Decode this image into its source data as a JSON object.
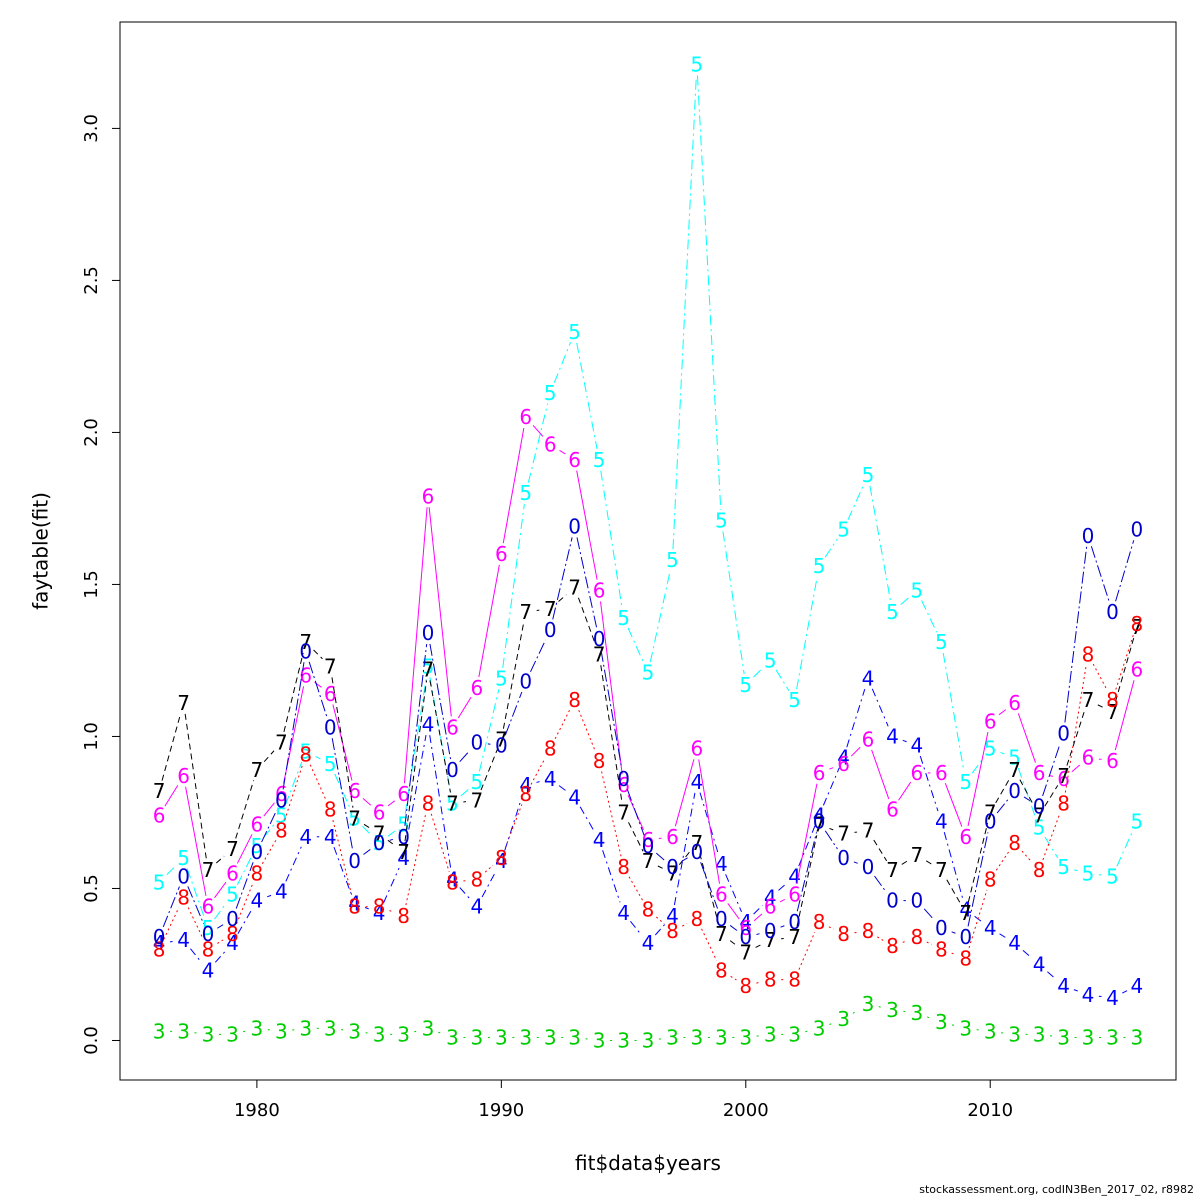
{
  "footer": "stockassessment.org, codIN3Ben_2017_02, r8982",
  "chart_data": {
    "type": "line",
    "title": "",
    "xlabel": "fit$data$years",
    "ylabel": "faytable(fit)",
    "xlim": [
      1975.4,
      1972.4
    ],
    "ylim": [
      -0.13,
      3.35
    ],
    "x_ticks": [
      1980,
      1990,
      2000,
      2010
    ],
    "x_tick_labels": [
      "1980",
      "1990",
      "2000",
      "2010"
    ],
    "y_ticks": [
      0.0,
      0.5,
      1.0,
      1.5,
      2.0,
      2.5,
      3.0
    ],
    "y_tick_labels": [
      "0.0",
      "0.5",
      "1.0",
      "1.5",
      "2.0",
      "2.5",
      "3.0"
    ],
    "grid": false,
    "x": [
      1976,
      1977,
      1978,
      1979,
      1980,
      1981,
      1982,
      1983,
      1984,
      1985,
      1986,
      1987,
      1988,
      1989,
      1990,
      1991,
      1992,
      1993,
      1994,
      1995,
      1996,
      1997,
      1998,
      1999,
      2000,
      2001,
      2002,
      2003,
      2004,
      2005,
      2006,
      2007,
      2008,
      2009,
      2010,
      2011,
      2012,
      2013,
      2014,
      2015,
      2016
    ],
    "series": [
      {
        "label": "3",
        "color": "#00cd00",
        "dash": "2,6",
        "values": [
          0.03,
          0.03,
          0.02,
          0.02,
          0.04,
          0.03,
          0.04,
          0.04,
          0.03,
          0.02,
          0.02,
          0.04,
          0.01,
          0.01,
          0.01,
          0.01,
          0.01,
          0.01,
          0.0,
          0.0,
          0.0,
          0.01,
          0.01,
          0.01,
          0.01,
          0.02,
          0.02,
          0.04,
          0.07,
          0.12,
          0.1,
          0.09,
          0.06,
          0.04,
          0.03,
          0.02,
          0.02,
          0.01,
          0.01,
          0.01,
          0.01
        ]
      },
      {
        "label": "4",
        "color": "#0000ff",
        "dash": "8,4,2,4",
        "values": [
          0.32,
          0.33,
          0.23,
          0.32,
          0.46,
          0.49,
          0.67,
          0.67,
          0.45,
          0.42,
          0.6,
          1.04,
          0.53,
          0.44,
          0.59,
          0.84,
          0.86,
          0.8,
          0.66,
          0.42,
          0.32,
          0.41,
          0.85,
          0.58,
          0.39,
          0.47,
          0.54,
          0.74,
          0.93,
          1.19,
          1.0,
          0.97,
          0.72,
          0.43,
          0.37,
          0.32,
          0.25,
          0.18,
          0.15,
          0.14,
          0.18
        ]
      },
      {
        "label": "5",
        "color": "#00ffff",
        "dash": "10,4,2,4",
        "values": [
          0.52,
          0.6,
          0.37,
          0.48,
          0.64,
          0.74,
          0.95,
          0.91,
          0.73,
          0.65,
          0.71,
          1.23,
          0.78,
          0.85,
          1.19,
          1.8,
          2.13,
          2.33,
          1.91,
          1.39,
          1.21,
          1.58,
          3.21,
          1.71,
          1.17,
          1.25,
          1.12,
          1.56,
          1.68,
          1.86,
          1.41,
          1.48,
          1.31,
          0.85,
          0.96,
          0.93,
          0.7,
          0.57,
          0.55,
          0.54,
          0.72
        ]
      },
      {
        "label": "6",
        "color": "#ff00ff",
        "dash": "",
        "values": [
          0.74,
          0.87,
          0.44,
          0.55,
          0.71,
          0.81,
          1.2,
          1.14,
          0.82,
          0.75,
          0.81,
          1.79,
          1.03,
          1.16,
          1.6,
          2.05,
          1.96,
          1.91,
          1.48,
          0.84,
          0.66,
          0.67,
          0.96,
          0.48,
          0.37,
          0.44,
          0.48,
          0.88,
          0.91,
          0.99,
          0.76,
          0.88,
          0.88,
          0.67,
          1.05,
          1.11,
          0.88,
          0.86,
          0.93,
          0.92,
          1.22
        ]
      },
      {
        "label": "7",
        "color": "#000000",
        "dash": "6,4",
        "values": [
          0.82,
          1.11,
          0.56,
          0.63,
          0.89,
          0.98,
          1.31,
          1.23,
          0.73,
          0.68,
          0.62,
          1.22,
          0.78,
          0.79,
          0.99,
          1.41,
          1.42,
          1.49,
          1.27,
          0.75,
          0.59,
          0.55,
          0.65,
          0.35,
          0.29,
          0.33,
          0.34,
          0.71,
          0.68,
          0.69,
          0.56,
          0.61,
          0.56,
          0.42,
          0.75,
          0.89,
          0.74,
          0.87,
          1.12,
          1.08,
          1.36
        ]
      },
      {
        "label": "8",
        "color": "#ff0000",
        "dash": "2,3",
        "values": [
          0.3,
          0.47,
          0.3,
          0.35,
          0.55,
          0.69,
          0.94,
          0.76,
          0.44,
          0.44,
          0.41,
          0.78,
          0.52,
          0.53,
          0.6,
          0.81,
          0.96,
          1.12,
          0.92,
          0.57,
          0.43,
          0.36,
          0.4,
          0.23,
          0.18,
          0.2,
          0.2,
          0.39,
          0.35,
          0.36,
          0.31,
          0.34,
          0.3,
          0.27,
          0.53,
          0.65,
          0.56,
          0.78,
          1.27,
          1.12,
          1.37
        ]
      },
      {
        "label": "0",
        "color": "#0000cd",
        "dash": "12,3,2,3",
        "values": [
          0.34,
          0.54,
          0.35,
          0.4,
          0.62,
          0.79,
          1.28,
          1.03,
          0.59,
          0.65,
          0.67,
          1.34,
          0.89,
          0.98,
          0.97,
          1.18,
          1.35,
          1.69,
          1.32,
          0.86,
          0.64,
          0.57,
          0.62,
          0.4,
          0.34,
          0.36,
          0.39,
          0.72,
          0.6,
          0.57,
          0.46,
          0.46,
          0.37,
          0.34,
          0.72,
          0.82,
          0.77,
          1.01,
          1.66,
          1.41,
          1.68
        ]
      }
    ]
  }
}
